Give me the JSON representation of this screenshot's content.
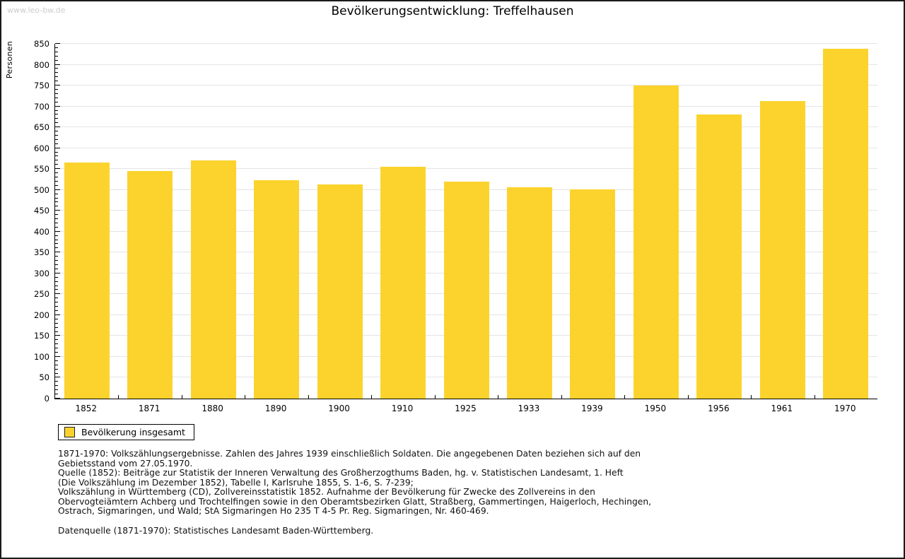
{
  "page": {
    "watermark": "www.leo-bw.de",
    "title": "Bevölkerungsentwicklung: Treffelhausen"
  },
  "chart_data": {
    "type": "bar",
    "title": "Bevölkerungsentwicklung: Treffelhausen",
    "ylabel": "Personen",
    "xlabel": "",
    "categories": [
      "1852",
      "1871",
      "1880",
      "1890",
      "1900",
      "1910",
      "1925",
      "1933",
      "1939",
      "1950",
      "1956",
      "1961",
      "1970"
    ],
    "values": [
      565,
      545,
      571,
      523,
      513,
      555,
      520,
      506,
      502,
      750,
      681,
      713,
      838
    ],
    "series_name": "Bevölkerung insgesamt",
    "ylim": [
      0,
      850
    ],
    "ytick_step": 50,
    "ytick_minor_step": 10,
    "grid": "horizontal-major",
    "bar_color": "#fcd32d",
    "gridline_color": "#e4e4e4",
    "axis_color": "#000000",
    "legend_position": "bottom-left"
  },
  "legend": {
    "label": "Bevölkerung insgesamt",
    "swatch_color": "#fcd32d"
  },
  "footnotes": {
    "lines": [
      "1871-1970: Volkszählungsergebnisse. Zahlen des Jahres 1939 einschließlich Soldaten. Die angegebenen Daten beziehen sich auf den",
      "Gebietsstand vom 27.05.1970.",
      "Quelle (1852): Beiträge zur Statistik der Inneren Verwaltung des Großherzogthums Baden, hg. v. Statistischen Landesamt, 1. Heft",
      "(Die Volkszählung im Dezember 1852), Tabelle I, Karlsruhe 1855, S. 1-6, S. 7-239;",
      "Volkszählung in Württemberg (CD), Zollvereinsstatistik 1852. Aufnahme der Bevölkerung für Zwecke des Zollvereins in den",
      "Obervogteiämtern Achberg und Trochtelfingen sowie in den Oberamtsbezirken Glatt, Straßberg, Gammertingen, Haigerloch, Hechingen,",
      "Ostrach, Sigmaringen, und Wald; StA Sigmaringen Ho 235 T 4-5 Pr. Reg. Sigmaringen, Nr. 460-469."
    ],
    "datasource": "Datenquelle (1871-1970): Statistisches Landesamt Baden-Württemberg."
  }
}
